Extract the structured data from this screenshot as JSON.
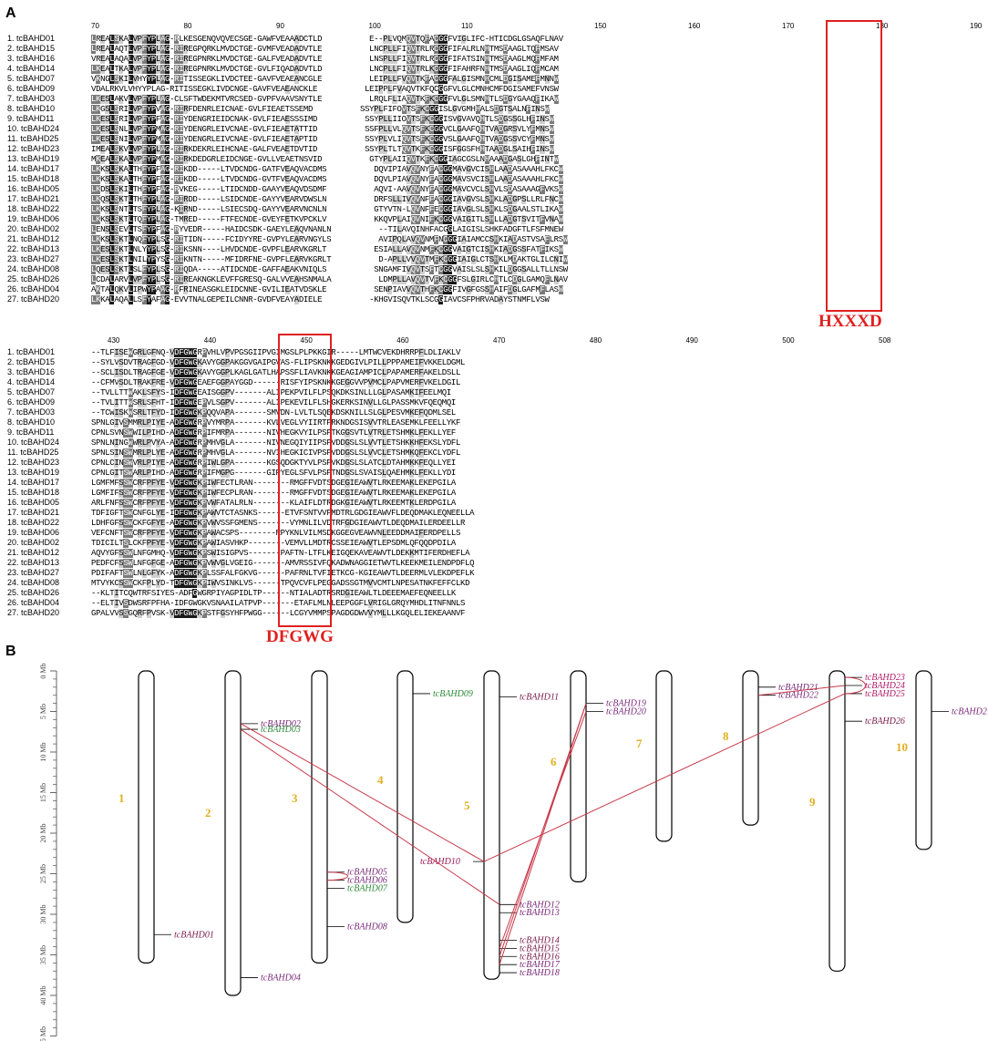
{
  "panels": {
    "a": "A",
    "b": "B"
  },
  "alignment": {
    "names": [
      "1. tcBAHD01",
      "2. tcBAHD15",
      "3. tcBAHD16",
      "4. tcBAHD14",
      "5. tcBAHD07",
      "6. tcBAHD09",
      "7. tcBAHD03",
      "8. tcBAHD10",
      "9. tcBAHD11",
      "10. tcBAHD24",
      "11. tcBAHD25",
      "12. tcBAHD23",
      "13. tcBAHD19",
      "14. tcBAHD17",
      "15. tcBAHD18",
      "16. tcBAHD05",
      "17. tcBAHD21",
      "18. tcBAHD22",
      "19. tcBAHD06",
      "20. tcBAHD02",
      "21. tcBAHD12",
      "22. tcBAHD13",
      "23. tcBAHD27",
      "24. tcBAHD08",
      "25. tcBAHD26",
      "26. tcBAHD04",
      "27. tcBAHD20"
    ],
    "block1_left": [
      "LREALSKALVPFYPLAG-RLKESGENQVQVECSGE-GAWFVEAAADCTLD",
      "LREALAQTLVPFYPLAG-RIREGPQRKLMVDCTGE-GVMFVEADADVTLE",
      "VREALAQALVPFYPLAG-RIREGPNRKLMVDCTGE-GALFVEADADVTLE",
      "LKEALTKALVPFYPLAG-RIREGPNRKLMVDCTGE-GVLFIQADADVTLD",
      "VKNGLSKILVHYYPLAG-RITISSEGKLIVDCTEE-GAVFVEAEANCGLE",
      "VDALRKVLVHYYPLAG-RITISSEGKLIVDCNGE-GAVFVEAEANCKLE",
      "LKESLAKVLVPFYPLAG-CLSFTWDEKMTVRCSED-GVPFVAAVSNYTLE",
      "LKGSLSRILVPFYPVAG-RIRFDENRLEICNAE-GVLFIEAETSSEMD",
      "LKESLSRILVPFYPFAG-RIYDENGRIEIDCNAK-GVLFIEAESSSIMD",
      "LKESLSNLLVPFYPMAG-RIYDENGRLEIVCNAE-GVLFIEAETATTID",
      "LKESLSNILVPFYPMAG-RIYDENGRLEIVCNAE-GVLFIEAETAPTID",
      "IMEALSKVLVPFYPLAG-RIRKDEKRLEIHCNAE-GALFVEAETDVTID",
      "MKEALSKALVPFYPMAG-RIRKDEDGRLEIDCNGE-GVLLVEAETNSVID",
      "LKKSLSKALTHFYPFAG-RIKDD-----LTVDCNDG-GATFVEAQVACDMS",
      "LKKSLSKALTHFYPFAG-RIKDD-----LTVDCNDG-GVTFVEAQVACDMS",
      "LKDSLSKILTHFYPFAG-RVKEG-----LTIDCNDD-GAAYVEAQVDSDMF",
      "LKQSLSKTLTHFYPLAG-RIRDD-----LSIDCNDE-GAYYVEARVDWSLN",
      "LKKSLSNTLTSFYPLAG-KIRND-----LSIECSDQ-GAYYVEARVNCNLN",
      "LKKSLSKTLTQFYPLAG-TMRED-----FTFECNDE-GVEYFETKVPCKLV",
      "LENSLSEVLTSFYPFAG-RYVEDR-----HAIDCSDK-GAEYLEAQVNANLN",
      "LKKSLSKTLNQFYPLSG-RITIDN-----FCIDYYRE-GVPYLEARVNGYLS",
      "LKESLSKTLNLYYPLSG-RIKSNN----LHVDCNDE-GVPFLEARVKGRLT",
      "LKESLSKTLNILYPYSG-RIKNTN-----MFIDRFNE-GVPFLEARVKGRLT",
      "LQESLSKTLSLFYPLSG-RIQDA-----ATIDCNDE-GAFFAEAKVNIQLS",
      "LCDALARVLVPFYPLSG-RIREAKNGKLEVFFGRESQ-GALVVEAHSNMALA",
      "AKTALQKVLIPWYPAAG-RFRINEASGKLEIDCNNE-GVILIEATVDSKLE",
      "LKKALAQALLSFYAFAG-EVVTNALGEPEILCNNR-GVDFVEAYADIELE"
    ],
    "block1_right": [
      "E--PLVQMQVTQFACGGFVIGLIFC-HTICDGLGSAQFLNAV",
      "LNCPLLFIQVTRLRCGGFIFALRLNHTMSDAAGLTQFMSAV",
      "LNSPLLFIQVTRLRCGGFIFATSINHTMSDAAGLMQFMFAM",
      "LNCPLLFIQVTRLKCGGFIFAHRFNHTMSDAAGLIQFMCAM",
      "LEIPLLFVQVTKFACGGFALGISMNHCMLDGISAMEFMNNW",
      "LEIPPLFVAQVTKFQCGGFVLGLCMNHCMFDGISAMEFVNSW",
      "LRQLFLIAQVTKFKCGGFVLGLSMNHTLSDGYGAAQFIKAW",
      "SSYPLFIFOVTSFKCGGISLGVGMHHALSDGTSALNFINSW",
      "SSYPLLIIOVTSFKCGGISVGVAVQHTLSDGSSGLHFINSW",
      "SSFPLLVLQVTSFKCGGVCLGAAFQHTVADGRSVLYFMNSW",
      "SSYPLVLIQVTSFKCGGVSLGAAFQHTVADGSSVCYFMNSW",
      "SSYPLTLTQVTKFKCGGISFGGSFHHTAADGLSAIHFINSW",
      "GTYPLAIIQVTKFKCGGIAGCGSLNHAAADGASLGHFINTW",
      "DQVIPIAVQVNYFACGGMAVGVCISHLAADASAAAHLFKCW",
      "DQVLPIAVQVNYFACGGMAVSVCISHLAADASAAAHLFKCW",
      "AQVI-AAVQVNYFACGGMAVCVCLSHVLSDASAAAGFVKSW",
      "DRFSLLIVQVNFFACGGIAVGVSLSHKLADGPSLLRLFNCW",
      "GTYVTN-LQVNFFECGGIAVGLSLSHKLSDGAALSTLIKAW",
      "KKQVPLAIQVNIFKCGGVAIGITLSHLLADGTSVITFVNAW",
      "--TILAVQINHFACGGLAIGISLSHKFADGFTLFSFMNEW",
      "AVIPQLAVQVNMFNCGGIAIAMCCSHKIADASTVSAFLRSW",
      "ESIALLAVQVNMFKCGGVAIGTCISHKIADGSSFATFIKSW",
      "D-APLLVVQVTMFKCGGIAIGLCTSHKLMDAKTGLILCNIW",
      "SNGAMFIVQVTSFTCGGVAISLSLSHKILDGGSALLTLLNSW",
      "LDMPLLAVQVTVFKCGGFSLGIRLCHTLCDGLGAMQFLNAV",
      "SENPIAVVQVTHFKCGGFIVGFGSSHAIFDGLGAFMFLASW",
      "-KHGVISQVTKLSCGGIAVCSFPHRVADAYSTNMFLVSW"
    ],
    "block1_ruler_left": [
      "70",
      "80",
      "90",
      "100",
      "110"
    ],
    "block1_ruler_right": [
      "150",
      "160",
      "170",
      "180",
      "190"
    ],
    "block2": [
      "--TLFISEWGRLGFNQ-VDFGWGRPVHLVPVPGSGIIPVGIMGSLPLPKKGIR-----LMTWCVEKDHRRPFLDLIAKLV",
      "--SYLVSDVTRAGFGD-VDFGWGKAVYGGPAKGGVGAIPGVAS-FLIPSKNKKGEDGIVLPILLPPPAMEIFVKKELDGML",
      "--SCLISDLTRAGFGE-VDFGWGKAVYGGPLKAGLGATLHAPSSFLIAVKNKKGEAGIAMPICLPAPAMERFAKELDSLL",
      "--CFMVSDLTRAKFRE-VDFGWGEAEFGGPAYGGD------RISFYIPSKNKKGEGGVVPVMCLPAPVMERFVKELDGIL",
      "--TVLLTTWAKLSFYS-IDFGWGEAISGGPV-------ALIPEKPVILFLPSQKDKSINLLLGLPASAMKIFEELMQI",
      "--TVLITTWSRLSFHT-IDFGWGEPVLSGPV-------ALIPEKEVILFLSHGKERKSINVLLGLPASSMKVFQEQMQI",
      "--TCWISKWSRLTFYD-IDFGWGKPQQVAPA-------SMVDN-LVLTLSQEKDSKNILLSLGLPESVMKEFQDMLSEL",
      "SPNLGIVSMMRLPIYE-ADFGWGRPVYMRPA-------KVLVEGLVYIIRTPRKNDGSISVVTRLEASEMKLFEELLYKF",
      "CPNLSVNSWWILPIHD-ADFGWGRPIFMRPA-------NIVHEGKVYILPSPTKGGSVTLVTRLETSHMKLFEKLLYEF",
      "SPNLNINGWWRLPVYA-ADFGWGRPMHVGLA-------NIVNEGQIYIIPSPVDDGSLSLVVTLETSHKKHFEKSLYDFL",
      "SPNLSINSWMRLPLYE-ADFGWGRPMHVGLA-------NVIHEGKICIVPSPVDDGSLSLVVCLETSHMKQFEKCLYDFL",
      "CPNLCINSWVRLPIYE-ADFGWGRPIWLGPA-------KGSQDGKTYVLPSPVKDGSLSLATCLDTAHMKKFEQLLYEI",
      "CPNLGITSWARLPIHD-ADFGWGRPIFMGPG-------GIPYEGLSFVLPSPTNDGSLSVAISLQAEHMKLFEKLLYDI",
      "LGMFMFSSWCRFPFYE-VDFGWGKPIWFECTLRAN--------RMGFFVDTSDGEGIEAWVTLRKEEMAKLEKEPGILA",
      "LGMFIFSSWCRFPFYE-VDFGWGKPIWFECPLRAN--------RMGFFVDTSDGEGIEAWVTLRKEEMAKLEKEPGILA",
      "ARLFNFSSWCRFPFYE-VDFGWGKPVWFATALRLN--------KLAIFLDTRDGKGIEAWVTLRKEEMTKLERDPGILA",
      "TDFIGFTSWCNFGLYE-IDFGWGKPAWVTCTASNKS------ETVFSNTVVFMDTRLGDGIEAWVFLDEQDMAKLEQNEELLA",
      "LDHFGFSSWCKFGFYE-ADFGWGKPVWVSSFGMENS-------VYMNLILVDTRFGDGIEAWVTLDEQDMAILERDEELLR",
      "VEFCNFTSWCRFPFYE-VDFGWGKPAWACSPS--------RPYKNLVILMSDKGGEGVEAWVNLEEDDMAIFERDPELLS",
      "TDICILTSLCKFPFYE-VDFGWGKPAWIASVHKP--------VEMVLLMDTRCSSEIEAWVTLEPSDMLQFQQDPDILA",
      "AQVYGFSSWLNFGMHQ-VDFGWGKPSWISIGPVS-------PAFTN-LTFLKEIGQEKAVEAWVTLDEKKMTIFERDHEFLA",
      "PEDFCFSSWLNFGFGE-ADFGWGKPVWVGLVGEIG-------AMVRSSIVFQKADWNAGGIETWVTLKEEKMEILENDPDFLQ",
      "PDIFAFTSWLNLGFYK-ADFGWGKPLSSFALFGKVG------PAFRNLTVFIETKCG-KGIEAWVTLDEERMLVLEKDPEFLK",
      "MTVYKCSSWCKFPLYD-TDFGWGKPIWVSINKLVS------TPQVCVFLPEGGADSSGTMVVCMTLNPESATNKFEFFCLKD",
      "--KLTITCQWTRFSIYES-ADFGWGRPIYAGPIDLTP------NTIALADTRSRDGIEAWLTLDEEEMAEFEQNEELLK",
      "--ELTIVSDWSRFPFHA-IDFGWGKVSNAAILATPVP-------ETAFLMLNLEEPGGFLVRIGLGRQYMHDLITNFNNLS",
      "GPALVVSSGQRFPVSK-VDFGWGKPSTFGSYHFPWGG------LCGYVMMPSPAGDGDWVVYMLLLKGQLELIEKEAANVF"
    ],
    "block2_ruler": [
      "430",
      "440",
      "450",
      "460",
      "470",
      "480",
      "490",
      "500",
      "508"
    ],
    "motifs": {
      "hxxxd": "HXXXD",
      "dfgwg": "DFGWG"
    }
  },
  "karyotype": {
    "axis_ticks": [
      "0 Mb",
      "5 Mb",
      "10 Mb",
      "15 Mb",
      "20 Mb",
      "25 Mb",
      "30 Mb",
      "35 Mb",
      "40 Mb",
      "45 Mb"
    ],
    "chromosomes": [
      {
        "label": "1",
        "length_mb": 36
      },
      {
        "label": "2",
        "length_mb": 40
      },
      {
        "label": "3",
        "length_mb": 36
      },
      {
        "label": "4",
        "length_mb": 31
      },
      {
        "label": "5",
        "length_mb": 38
      },
      {
        "label": "6",
        "length_mb": 26
      },
      {
        "label": "7",
        "length_mb": 21
      },
      {
        "label": "8",
        "length_mb": 19
      },
      {
        "label": "9",
        "length_mb": 37
      },
      {
        "label": "10",
        "length_mb": 22
      }
    ],
    "genes": [
      {
        "name": "tcBAHD01",
        "chr": 1,
        "mb": 32.5,
        "color": "#7a1a4a"
      },
      {
        "name": "tcBAHD02",
        "chr": 2,
        "mb": 6.5,
        "color": "#7a2a7a"
      },
      {
        "name": "tcBAHD03",
        "chr": 2,
        "mb": 7.2,
        "color": "#2e8b3a"
      },
      {
        "name": "tcBAHD04",
        "chr": 2,
        "mb": 37.8,
        "color": "#7a2a7a"
      },
      {
        "name": "tcBAHD05",
        "chr": 3,
        "mb": 24.8,
        "color": "#7a2a7a"
      },
      {
        "name": "tcBAHD06",
        "chr": 3,
        "mb": 25.8,
        "color": "#7a2a7a"
      },
      {
        "name": "tcBAHD07",
        "chr": 3,
        "mb": 26.8,
        "color": "#2e8b3a"
      },
      {
        "name": "tcBAHD08",
        "chr": 3,
        "mb": 31.5,
        "color": "#7a2a7a"
      },
      {
        "name": "tcBAHD09",
        "chr": 4,
        "mb": 2.8,
        "color": "#2e8b3a"
      },
      {
        "name": "tcBAHD10",
        "chr": 5,
        "mb": 23.5,
        "color": "#9a1a5a"
      },
      {
        "name": "tcBAHD11",
        "chr": 5,
        "mb": 3.2,
        "color": "#7a1a4a"
      },
      {
        "name": "tcBAHD12",
        "chr": 5,
        "mb": 28.8,
        "color": "#7a2a7a"
      },
      {
        "name": "tcBAHD13",
        "chr": 5,
        "mb": 29.8,
        "color": "#7a2a7a"
      },
      {
        "name": "tcBAHD14",
        "chr": 5,
        "mb": 33.2,
        "color": "#7a1a4a"
      },
      {
        "name": "tcBAHD15",
        "chr": 5,
        "mb": 34.2,
        "color": "#7a1a4a"
      },
      {
        "name": "tcBAHD16",
        "chr": 5,
        "mb": 35.2,
        "color": "#7a1a4a"
      },
      {
        "name": "tcBAHD17",
        "chr": 5,
        "mb": 36.2,
        "color": "#7a2a7a"
      },
      {
        "name": "tcBAHD18",
        "chr": 5,
        "mb": 37.2,
        "color": "#7a2a7a"
      },
      {
        "name": "tcBAHD19",
        "chr": 6,
        "mb": 4.0,
        "color": "#7a2a7a"
      },
      {
        "name": "tcBAHD20",
        "chr": 6,
        "mb": 5.0,
        "color": "#7a2a7a"
      },
      {
        "name": "tcBAHD21",
        "chr": 8,
        "mb": 2.0,
        "color": "#7a2a7a"
      },
      {
        "name": "tcBAHD22",
        "chr": 8,
        "mb": 3.0,
        "color": "#7a2a7a"
      },
      {
        "name": "tcBAHD23",
        "chr": 9,
        "mb": 0.8,
        "color": "#b01a6a"
      },
      {
        "name": "tcBAHD24",
        "chr": 9,
        "mb": 1.8,
        "color": "#b01a6a"
      },
      {
        "name": "tcBAHD25",
        "chr": 9,
        "mb": 2.8,
        "color": "#b01a6a"
      },
      {
        "name": "tcBAHD26",
        "chr": 9,
        "mb": 6.2,
        "color": "#7a1a4a"
      },
      {
        "name": "tcBAHD27",
        "chr": 10,
        "mb": 5.0,
        "color": "#7a2a7a"
      }
    ],
    "links": [
      [
        "tcBAHD02",
        "tcBAHD10"
      ],
      [
        "tcBAHD03",
        "tcBAHD12"
      ],
      [
        "tcBAHD05",
        "tcBAHD06"
      ],
      [
        "tcBAHD10",
        "tcBAHD25"
      ],
      [
        "tcBAHD19",
        "tcBAHD16"
      ],
      [
        "tcBAHD19",
        "tcBAHD17"
      ],
      [
        "tcBAHD20",
        "tcBAHD15"
      ],
      [
        "tcBAHD22",
        "tcBAHD24"
      ],
      [
        "tcBAHD23",
        "tcBAHD25"
      ]
    ],
    "colors": {
      "link": "#c83a4a",
      "chr_label": "#e0b020",
      "axis": "#666666"
    }
  }
}
